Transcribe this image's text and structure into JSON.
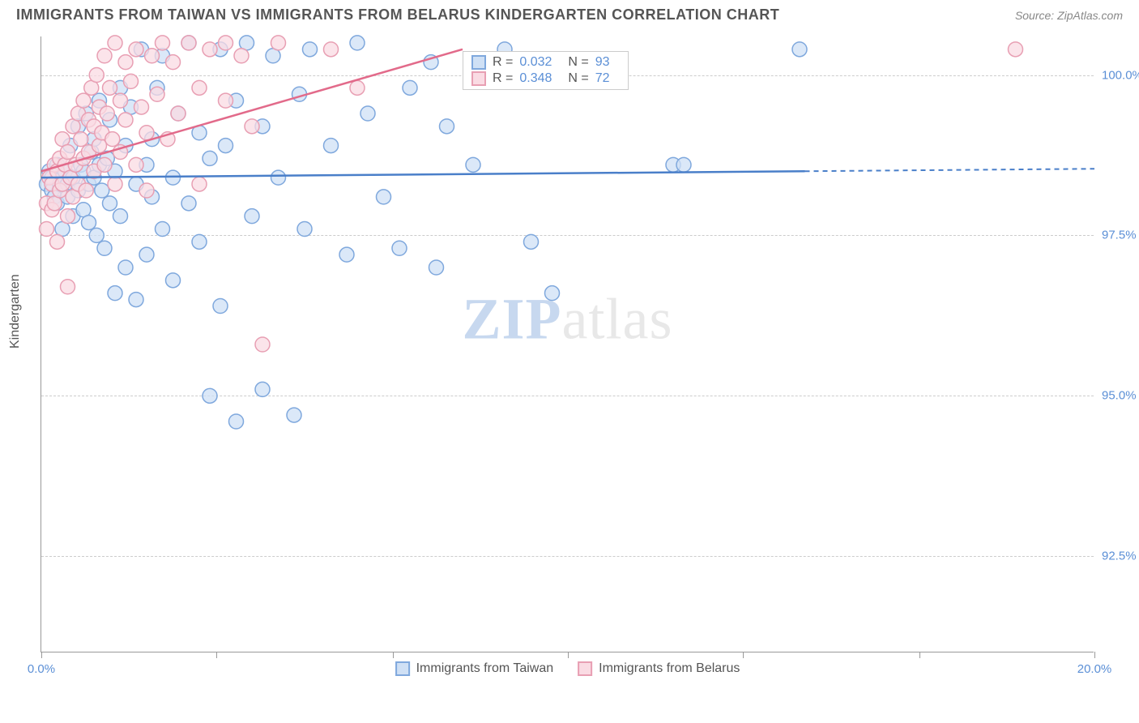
{
  "header": {
    "title": "IMMIGRANTS FROM TAIWAN VS IMMIGRANTS FROM BELARUS KINDERGARTEN CORRELATION CHART",
    "source": "Source: ZipAtlas.com"
  },
  "chart": {
    "type": "scatter",
    "ylabel": "Kindergarten",
    "xlim": [
      0,
      20
    ],
    "ylim": [
      91,
      100.6
    ],
    "xtick_labels": [
      "0.0%",
      "20.0%"
    ],
    "xtick_positions": [
      0,
      20
    ],
    "xtick_marks": [
      0,
      3.33,
      6.67,
      10,
      13.33,
      16.67,
      20
    ],
    "ytick_labels": [
      "92.5%",
      "95.0%",
      "97.5%",
      "100.0%"
    ],
    "ytick_positions": [
      92.5,
      95.0,
      97.5,
      100.0
    ],
    "background_color": "#ffffff",
    "grid_color": "#cccccc",
    "series": [
      {
        "name": "Immigrants from Taiwan",
        "marker_fill": "#cfe0f5",
        "marker_stroke": "#7fa8dd",
        "line_color": "#4a7fc9",
        "marker_radius": 9,
        "R": "0.032",
        "N": "93",
        "trend": {
          "x1": 0,
          "y1": 98.4,
          "x2": 14.5,
          "y2": 98.5,
          "dash_to_x": 20
        },
        "points": [
          [
            0.1,
            98.3
          ],
          [
            0.15,
            98.5
          ],
          [
            0.2,
            98.4
          ],
          [
            0.2,
            98.2
          ],
          [
            0.25,
            98.1
          ],
          [
            0.3,
            98.6
          ],
          [
            0.3,
            98.0
          ],
          [
            0.35,
            98.3
          ],
          [
            0.4,
            98.4
          ],
          [
            0.4,
            97.6
          ],
          [
            0.45,
            98.5
          ],
          [
            0.5,
            98.3
          ],
          [
            0.5,
            98.1
          ],
          [
            0.55,
            98.9
          ],
          [
            0.6,
            98.4
          ],
          [
            0.6,
            97.8
          ],
          [
            0.7,
            99.2
          ],
          [
            0.7,
            98.2
          ],
          [
            0.75,
            98.6
          ],
          [
            0.8,
            97.9
          ],
          [
            0.8,
            98.5
          ],
          [
            0.85,
            99.4
          ],
          [
            0.9,
            98.3
          ],
          [
            0.9,
            97.7
          ],
          [
            0.95,
            98.8
          ],
          [
            1.0,
            98.4
          ],
          [
            1.0,
            99.0
          ],
          [
            1.05,
            97.5
          ],
          [
            1.1,
            98.6
          ],
          [
            1.1,
            99.6
          ],
          [
            1.15,
            98.2
          ],
          [
            1.2,
            97.3
          ],
          [
            1.25,
            98.7
          ],
          [
            1.3,
            99.3
          ],
          [
            1.3,
            98.0
          ],
          [
            1.4,
            96.6
          ],
          [
            1.4,
            98.5
          ],
          [
            1.5,
            99.8
          ],
          [
            1.5,
            97.8
          ],
          [
            1.6,
            98.9
          ],
          [
            1.6,
            97.0
          ],
          [
            1.7,
            99.5
          ],
          [
            1.8,
            98.3
          ],
          [
            1.8,
            96.5
          ],
          [
            1.9,
            100.4
          ],
          [
            2.0,
            98.6
          ],
          [
            2.0,
            97.2
          ],
          [
            2.1,
            99.0
          ],
          [
            2.1,
            98.1
          ],
          [
            2.2,
            99.8
          ],
          [
            2.3,
            97.6
          ],
          [
            2.3,
            100.3
          ],
          [
            2.5,
            98.4
          ],
          [
            2.5,
            96.8
          ],
          [
            2.6,
            99.4
          ],
          [
            2.8,
            98.0
          ],
          [
            2.8,
            100.5
          ],
          [
            3.0,
            97.4
          ],
          [
            3.0,
            99.1
          ],
          [
            3.2,
            98.7
          ],
          [
            3.2,
            95.0
          ],
          [
            3.4,
            100.4
          ],
          [
            3.4,
            96.4
          ],
          [
            3.5,
            98.9
          ],
          [
            3.7,
            99.6
          ],
          [
            3.7,
            94.6
          ],
          [
            3.9,
            100.5
          ],
          [
            4.0,
            97.8
          ],
          [
            4.2,
            99.2
          ],
          [
            4.2,
            95.1
          ],
          [
            4.4,
            100.3
          ],
          [
            4.5,
            98.4
          ],
          [
            4.8,
            94.7
          ],
          [
            4.9,
            99.7
          ],
          [
            5.0,
            97.6
          ],
          [
            5.1,
            100.4
          ],
          [
            5.5,
            98.9
          ],
          [
            5.8,
            97.2
          ],
          [
            6.0,
            100.5
          ],
          [
            6.2,
            99.4
          ],
          [
            6.5,
            98.1
          ],
          [
            6.8,
            97.3
          ],
          [
            7.0,
            99.8
          ],
          [
            7.4,
            100.2
          ],
          [
            7.5,
            97.0
          ],
          [
            7.7,
            99.2
          ],
          [
            8.2,
            98.6
          ],
          [
            8.8,
            100.4
          ],
          [
            9.3,
            97.4
          ],
          [
            9.7,
            96.6
          ],
          [
            12.0,
            98.6
          ],
          [
            12.2,
            98.6
          ],
          [
            14.4,
            100.4
          ]
        ]
      },
      {
        "name": "Immigrants from Belarus",
        "marker_fill": "#fadbe3",
        "marker_stroke": "#e89fb3",
        "line_color": "#e26a8a",
        "marker_radius": 9,
        "R": "0.348",
        "N": "72",
        "trend": {
          "x1": 0,
          "y1": 98.5,
          "x2": 8.0,
          "y2": 100.4
        },
        "points": [
          [
            0.1,
            98.0
          ],
          [
            0.1,
            97.6
          ],
          [
            0.15,
            98.4
          ],
          [
            0.2,
            98.3
          ],
          [
            0.2,
            97.9
          ],
          [
            0.25,
            98.6
          ],
          [
            0.25,
            98.0
          ],
          [
            0.3,
            98.5
          ],
          [
            0.3,
            97.4
          ],
          [
            0.35,
            98.7
          ],
          [
            0.35,
            98.2
          ],
          [
            0.4,
            99.0
          ],
          [
            0.4,
            98.3
          ],
          [
            0.45,
            98.6
          ],
          [
            0.5,
            98.8
          ],
          [
            0.5,
            97.8
          ],
          [
            0.5,
            96.7
          ],
          [
            0.55,
            98.4
          ],
          [
            0.6,
            99.2
          ],
          [
            0.6,
            98.1
          ],
          [
            0.65,
            98.6
          ],
          [
            0.7,
            99.4
          ],
          [
            0.7,
            98.3
          ],
          [
            0.75,
            99.0
          ],
          [
            0.8,
            98.7
          ],
          [
            0.8,
            99.6
          ],
          [
            0.85,
            98.2
          ],
          [
            0.9,
            99.3
          ],
          [
            0.9,
            98.8
          ],
          [
            0.95,
            99.8
          ],
          [
            1.0,
            98.5
          ],
          [
            1.0,
            99.2
          ],
          [
            1.05,
            100.0
          ],
          [
            1.1,
            98.9
          ],
          [
            1.1,
            99.5
          ],
          [
            1.15,
            99.1
          ],
          [
            1.2,
            100.3
          ],
          [
            1.2,
            98.6
          ],
          [
            1.25,
            99.4
          ],
          [
            1.3,
            99.8
          ],
          [
            1.35,
            99.0
          ],
          [
            1.4,
            100.5
          ],
          [
            1.4,
            98.3
          ],
          [
            1.5,
            99.6
          ],
          [
            1.5,
            98.8
          ],
          [
            1.6,
            100.2
          ],
          [
            1.6,
            99.3
          ],
          [
            1.7,
            99.9
          ],
          [
            1.8,
            98.6
          ],
          [
            1.8,
            100.4
          ],
          [
            1.9,
            99.5
          ],
          [
            2.0,
            99.1
          ],
          [
            2.0,
            98.2
          ],
          [
            2.1,
            100.3
          ],
          [
            2.2,
            99.7
          ],
          [
            2.3,
            100.5
          ],
          [
            2.4,
            99.0
          ],
          [
            2.5,
            100.2
          ],
          [
            2.6,
            99.4
          ],
          [
            2.8,
            100.5
          ],
          [
            3.0,
            99.8
          ],
          [
            3.0,
            98.3
          ],
          [
            3.2,
            100.4
          ],
          [
            3.5,
            99.6
          ],
          [
            3.5,
            100.5
          ],
          [
            3.8,
            100.3
          ],
          [
            4.0,
            99.2
          ],
          [
            4.2,
            95.8
          ],
          [
            4.5,
            100.5
          ],
          [
            5.5,
            100.4
          ],
          [
            6.0,
            99.8
          ],
          [
            18.5,
            100.4
          ]
        ]
      }
    ],
    "watermark": {
      "part1": "ZIP",
      "part2": "atlas"
    },
    "stats_box": {
      "r_label": "R",
      "n_label": "N",
      "eq": "="
    }
  }
}
